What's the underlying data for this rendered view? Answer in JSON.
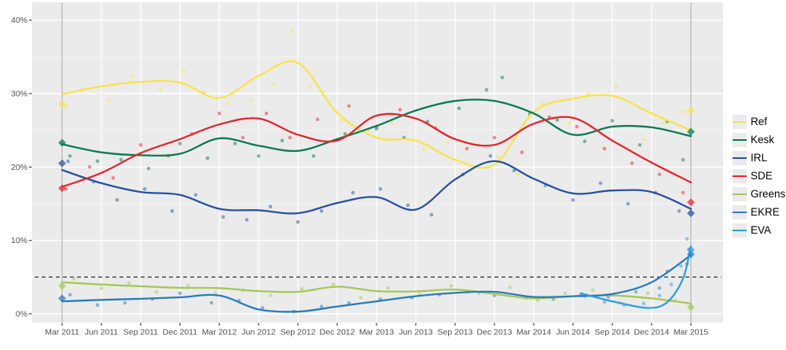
{
  "figure": {
    "background": "#ffffff",
    "panel_background": "#ebebeb",
    "grid_color": "#ffffff",
    "axis_text_color": "#4f4f4f",
    "tick_mark_color": "#333333",
    "election_line_color": "#c2c2c2",
    "threshold_color": "#3f3f3f"
  },
  "chart_data": {
    "type": "line",
    "title": "",
    "xlabel": "",
    "ylabel": "",
    "legend_position": "right",
    "grid": "on",
    "ylim": [
      -1.2,
      42.5
    ],
    "y_tick_values": [
      0,
      10,
      20,
      30,
      40
    ],
    "y_tick_labels": [
      "0%",
      "10%",
      "20%",
      "30%",
      "40%"
    ],
    "y_minor_values": [
      5,
      15,
      25,
      35
    ],
    "x_tick_labels": [
      "Mar 2011",
      "Jun 2011",
      "Sep 2011",
      "Dec 2011",
      "Mar 2012",
      "Jun 2012",
      "Sep 2012",
      "Dec 2012",
      "Mar 2013",
      "Jun 2013",
      "Sep 2013",
      "Dec 2013",
      "Mar 2014",
      "Jun 2014",
      "Sep 2014",
      "Dec 2014",
      "Mar 2015"
    ],
    "threshold_value": 5,
    "election_marks_x": [
      0,
      16
    ],
    "series": [
      {
        "name": "Ref",
        "color": "#FBE24A",
        "trend": [
          [
            0,
            29.9
          ],
          [
            1,
            31.0
          ],
          [
            2,
            31.6
          ],
          [
            3,
            31.5
          ],
          [
            4,
            29.4
          ],
          [
            5,
            32.4
          ],
          [
            6,
            34.2
          ],
          [
            7,
            27.4
          ],
          [
            8,
            24.0
          ],
          [
            9,
            23.6
          ],
          [
            10,
            21.0
          ],
          [
            11,
            20.3
          ],
          [
            12,
            27.5
          ],
          [
            13,
            29.3
          ],
          [
            14,
            29.7
          ],
          [
            15,
            27.3
          ],
          [
            16,
            25.0
          ]
        ],
        "polls": [
          [
            0.1,
            28.2
          ],
          [
            0.5,
            30.5
          ],
          [
            1.2,
            29.0
          ],
          [
            1.8,
            32.3
          ],
          [
            2.5,
            30.6
          ],
          [
            3.1,
            33.0
          ],
          [
            3.6,
            30.2
          ],
          [
            4.2,
            28.6
          ],
          [
            4.8,
            29.0
          ],
          [
            5.4,
            31.2
          ],
          [
            5.85,
            38.5
          ],
          [
            6.3,
            30.9
          ],
          [
            7.1,
            26.3
          ],
          [
            7.8,
            25.0
          ],
          [
            8.4,
            26.0
          ],
          [
            9.2,
            22.4
          ],
          [
            9.8,
            23.3
          ],
          [
            10.4,
            19.5
          ],
          [
            11.1,
            21.3
          ],
          [
            11.6,
            19.0
          ],
          [
            12.2,
            28.7
          ],
          [
            12.9,
            26.0
          ],
          [
            13.4,
            30.0
          ],
          [
            14.1,
            31.0
          ],
          [
            14.8,
            23.7
          ],
          [
            15.3,
            26.0
          ],
          [
            15.8,
            27.5
          ]
        ],
        "elections": [
          [
            0,
            28.6
          ],
          [
            16,
            27.7
          ]
        ]
      },
      {
        "name": "Kesk",
        "color": "#0A7A52",
        "trend": [
          [
            0,
            23.1
          ],
          [
            1,
            22.0
          ],
          [
            2,
            21.6
          ],
          [
            3,
            21.8
          ],
          [
            4,
            23.9
          ],
          [
            5,
            22.9
          ],
          [
            6,
            22.2
          ],
          [
            7,
            23.8
          ],
          [
            8,
            25.6
          ],
          [
            9,
            27.7
          ],
          [
            10,
            29.0
          ],
          [
            11,
            29.0
          ],
          [
            12,
            27.3
          ],
          [
            13,
            24.4
          ],
          [
            14,
            25.5
          ],
          [
            15,
            25.4
          ],
          [
            16,
            24.2
          ]
        ],
        "polls": [
          [
            0.2,
            21.5
          ],
          [
            0.9,
            20.8
          ],
          [
            1.5,
            21.0
          ],
          [
            2.2,
            19.8
          ],
          [
            3.0,
            23.2
          ],
          [
            3.7,
            21.2
          ],
          [
            4.4,
            23.2
          ],
          [
            5.0,
            21.5
          ],
          [
            5.6,
            23.6
          ],
          [
            6.4,
            21.5
          ],
          [
            7.2,
            24.5
          ],
          [
            8.0,
            25.2
          ],
          [
            8.7,
            24.0
          ],
          [
            9.3,
            26.2
          ],
          [
            10.1,
            28.0
          ],
          [
            10.8,
            30.5
          ],
          [
            11.2,
            32.2
          ],
          [
            11.9,
            27.2
          ],
          [
            12.6,
            26.4
          ],
          [
            13.3,
            23.5
          ],
          [
            14.0,
            26.3
          ],
          [
            14.7,
            23.0
          ],
          [
            15.4,
            26.2
          ],
          [
            15.8,
            21.0
          ]
        ],
        "elections": [
          [
            0,
            23.3
          ],
          [
            16,
            24.8
          ]
        ]
      },
      {
        "name": "IRL",
        "color": "#27519F",
        "trend": [
          [
            0,
            19.6
          ],
          [
            1,
            17.8
          ],
          [
            2,
            16.6
          ],
          [
            3,
            16.2
          ],
          [
            4,
            14.3
          ],
          [
            5,
            14.1
          ],
          [
            6,
            13.7
          ],
          [
            7,
            15.1
          ],
          [
            8,
            15.9
          ],
          [
            9,
            14.2
          ],
          [
            10,
            18.3
          ],
          [
            11,
            20.8
          ],
          [
            12,
            18.4
          ],
          [
            13,
            16.4
          ],
          [
            14,
            16.8
          ],
          [
            15,
            16.6
          ],
          [
            16,
            14.3
          ]
        ],
        "polls": [
          [
            0.15,
            20.8
          ],
          [
            0.8,
            18.0
          ],
          [
            1.4,
            15.5
          ],
          [
            2.1,
            17.0
          ],
          [
            2.8,
            14.0
          ],
          [
            3.4,
            16.2
          ],
          [
            4.1,
            13.2
          ],
          [
            4.7,
            12.8
          ],
          [
            5.3,
            14.6
          ],
          [
            6.0,
            12.5
          ],
          [
            6.6,
            14.0
          ],
          [
            7.4,
            16.5
          ],
          [
            8.1,
            17.0
          ],
          [
            8.8,
            14.8
          ],
          [
            9.4,
            13.5
          ],
          [
            10.2,
            19.0
          ],
          [
            10.9,
            21.5
          ],
          [
            11.5,
            19.5
          ],
          [
            12.3,
            17.5
          ],
          [
            13.0,
            15.5
          ],
          [
            13.7,
            17.8
          ],
          [
            14.4,
            15.0
          ],
          [
            15.1,
            16.5
          ],
          [
            15.7,
            14.0
          ]
        ],
        "elections": [
          [
            0,
            20.5
          ],
          [
            16,
            13.7
          ]
        ]
      },
      {
        "name": "SDE",
        "color": "#E3262E",
        "trend": [
          [
            0,
            17.3
          ],
          [
            1,
            19.2
          ],
          [
            2,
            21.9
          ],
          [
            3,
            23.8
          ],
          [
            4,
            25.8
          ],
          [
            5,
            26.6
          ],
          [
            6,
            24.4
          ],
          [
            7,
            23.6
          ],
          [
            8,
            27.0
          ],
          [
            9,
            26.6
          ],
          [
            10,
            23.8
          ],
          [
            11,
            23.0
          ],
          [
            12,
            25.9
          ],
          [
            13,
            26.7
          ],
          [
            14,
            23.6
          ],
          [
            15,
            20.6
          ],
          [
            16,
            17.9
          ]
        ],
        "polls": [
          [
            0.1,
            17.0
          ],
          [
            0.7,
            20.0
          ],
          [
            1.3,
            18.5
          ],
          [
            2.0,
            23.0
          ],
          [
            2.7,
            21.5
          ],
          [
            3.3,
            24.5
          ],
          [
            4.0,
            27.3
          ],
          [
            4.6,
            24.0
          ],
          [
            5.2,
            27.3
          ],
          [
            5.8,
            24.0
          ],
          [
            6.5,
            26.5
          ],
          [
            7.3,
            28.3
          ],
          [
            8.0,
            25.5
          ],
          [
            8.6,
            27.8
          ],
          [
            9.5,
            25.3
          ],
          [
            10.3,
            22.5
          ],
          [
            11.0,
            24.0
          ],
          [
            11.7,
            22.0
          ],
          [
            12.4,
            26.8
          ],
          [
            13.1,
            25.5
          ],
          [
            13.8,
            22.5
          ],
          [
            14.5,
            20.5
          ],
          [
            15.2,
            19.0
          ],
          [
            15.8,
            16.5
          ]
        ],
        "elections": [
          [
            0,
            17.1
          ],
          [
            16,
            15.2
          ]
        ]
      },
      {
        "name": "Greens",
        "color": "#A5C857",
        "trend": [
          [
            0,
            4.3
          ],
          [
            1,
            4.0
          ],
          [
            2,
            3.75
          ],
          [
            3,
            3.55
          ],
          [
            4,
            3.5
          ],
          [
            5,
            3.1
          ],
          [
            6,
            3.0
          ],
          [
            7,
            3.7
          ],
          [
            8,
            3.1
          ],
          [
            9,
            3.05
          ],
          [
            10,
            3.3
          ],
          [
            11,
            2.7
          ],
          [
            12,
            2.1
          ],
          [
            13,
            2.4
          ],
          [
            14,
            2.5
          ],
          [
            15,
            2.1
          ],
          [
            16,
            1.4
          ]
        ],
        "polls": [
          [
            0.3,
            4.8
          ],
          [
            1.0,
            3.5
          ],
          [
            1.7,
            4.2
          ],
          [
            2.4,
            3.0
          ],
          [
            3.2,
            3.8
          ],
          [
            3.9,
            2.8
          ],
          [
            4.6,
            3.2
          ],
          [
            5.3,
            2.5
          ],
          [
            6.1,
            3.4
          ],
          [
            6.9,
            4.0
          ],
          [
            7.6,
            2.2
          ],
          [
            8.3,
            3.5
          ],
          [
            9.1,
            2.6
          ],
          [
            9.9,
            3.8
          ],
          [
            10.6,
            2.8
          ],
          [
            11.4,
            3.6
          ],
          [
            12.1,
            1.8
          ],
          [
            12.8,
            2.8
          ],
          [
            13.5,
            3.2
          ],
          [
            14.2,
            1.5
          ],
          [
            14.9,
            2.8
          ],
          [
            15.6,
            1.8
          ]
        ],
        "elections": [
          [
            0,
            3.8
          ],
          [
            16,
            0.9
          ]
        ]
      },
      {
        "name": "EKRE",
        "color": "#2A7AB9",
        "trend": [
          [
            0,
            1.7
          ],
          [
            1,
            1.9
          ],
          [
            2,
            2.05
          ],
          [
            3,
            2.25
          ],
          [
            4,
            2.5
          ],
          [
            5,
            0.6
          ],
          [
            6,
            0.3
          ],
          [
            7,
            1.0
          ],
          [
            8,
            1.7
          ],
          [
            9,
            2.4
          ],
          [
            10,
            2.85
          ],
          [
            11,
            3.0
          ],
          [
            12,
            2.3
          ],
          [
            13,
            2.4
          ],
          [
            14,
            2.7
          ],
          [
            15,
            4.3
          ],
          [
            16,
            8.0
          ]
        ],
        "polls": [
          [
            0.2,
            2.6
          ],
          [
            0.9,
            1.2
          ],
          [
            1.6,
            1.5
          ],
          [
            2.3,
            2.0
          ],
          [
            3.0,
            2.8
          ],
          [
            3.8,
            1.5
          ],
          [
            4.5,
            1.8
          ],
          [
            5.1,
            0.8
          ],
          [
            5.9,
            0.3
          ],
          [
            6.6,
            1.0
          ],
          [
            7.3,
            1.5
          ],
          [
            8.1,
            2.0
          ],
          [
            8.9,
            2.2
          ],
          [
            9.6,
            2.6
          ],
          [
            10.3,
            3.0
          ],
          [
            11.0,
            2.5
          ],
          [
            11.8,
            2.2
          ],
          [
            12.5,
            2.0
          ],
          [
            13.2,
            2.6
          ],
          [
            13.9,
            2.3
          ],
          [
            14.6,
            3.0
          ],
          [
            15.2,
            3.5
          ],
          [
            15.4,
            5.8
          ],
          [
            15.9,
            6.8
          ]
        ],
        "elections": [
          [
            0,
            2.1
          ],
          [
            16,
            8.1
          ]
        ]
      },
      {
        "name": "EVA",
        "color": "#2D9FD6",
        "trend": [
          [
            13.2,
            2.8
          ],
          [
            14.0,
            1.7
          ],
          [
            14.9,
            0.8
          ],
          [
            15.4,
            1.6
          ],
          [
            15.8,
            4.8
          ],
          [
            16,
            9.2
          ]
        ],
        "polls": [
          [
            13.3,
            2.4
          ],
          [
            13.8,
            1.6
          ],
          [
            14.3,
            1.2
          ],
          [
            14.8,
            1.4
          ],
          [
            15.2,
            2.5
          ],
          [
            15.5,
            4.0
          ],
          [
            15.75,
            6.5
          ],
          [
            15.9,
            10.2
          ],
          [
            15.95,
            8.8
          ]
        ],
        "elections": [
          [
            16,
            8.7
          ]
        ]
      }
    ]
  }
}
